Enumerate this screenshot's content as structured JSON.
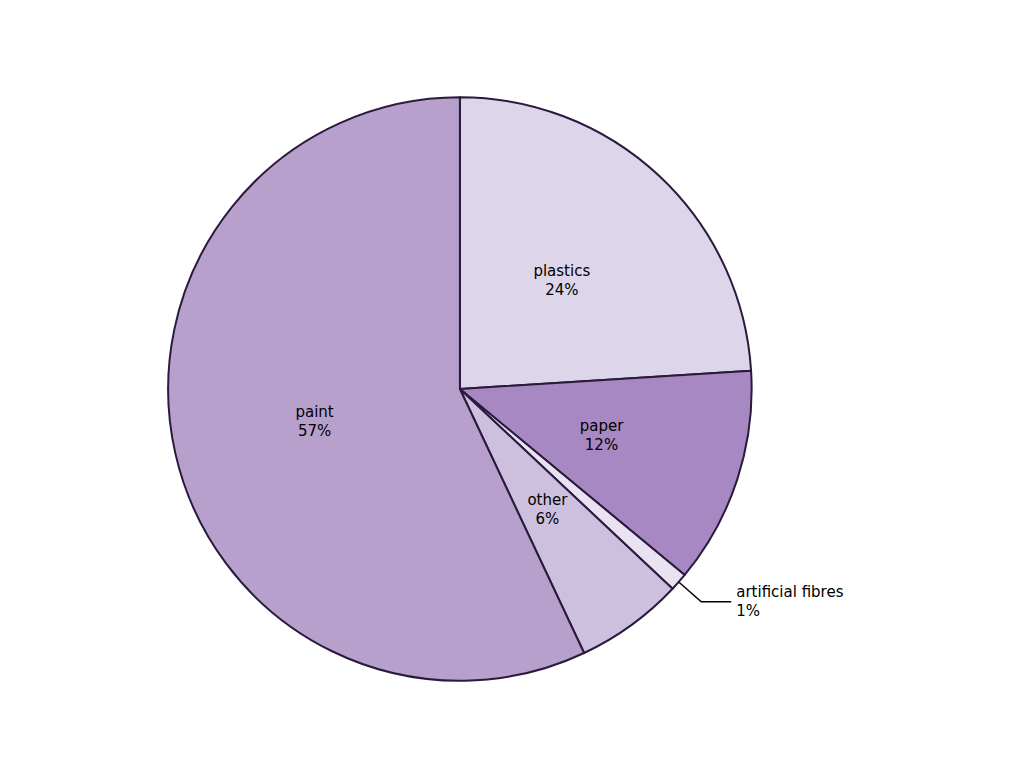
{
  "chart_data": {
    "type": "pie",
    "categories": [
      "plastics",
      "paper",
      "artificial fibres",
      "other",
      "paint"
    ],
    "values": [
      24,
      12,
      1,
      6,
      57
    ],
    "value_labels": [
      "24%",
      "12%",
      "1%",
      "6%",
      "57%"
    ],
    "colors": [
      "#ddd5ea",
      "#a888c2",
      "#e8e2f2",
      "#ccc0de",
      "#b8a0cc"
    ],
    "data_labels": true
  }
}
